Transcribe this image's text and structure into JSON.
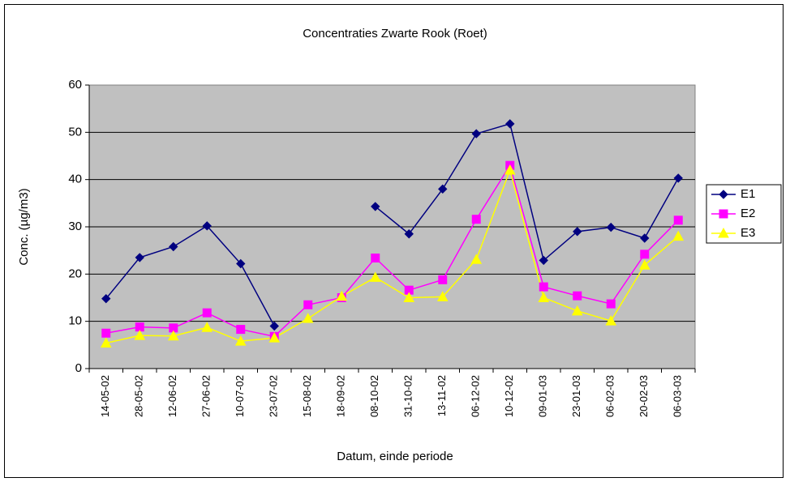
{
  "chart_data": {
    "type": "line",
    "title": "Concentraties Zwarte Rook (Roet)",
    "x_label": "Datum, einde periode",
    "y_label": "Conc. (µg/m3)",
    "categories": [
      "14-05-02",
      "28-05-02",
      "12-06-02",
      "27-06-02",
      "10-07-02",
      "23-07-02",
      "15-08-02",
      "18-09-02",
      "08-10-02",
      "31-10-02",
      "13-11-02",
      "06-12-02",
      "10-12-02",
      "09-01-03",
      "23-01-03",
      "06-02-03",
      "20-02-03",
      "06-03-03"
    ],
    "series": [
      {
        "name": "E1",
        "color": "#000080",
        "marker": "diamond",
        "values": [
          14.8,
          23.5,
          25.8,
          30.2,
          22.2,
          9.0,
          null,
          null,
          34.3,
          28.5,
          38.0,
          49.7,
          51.8,
          22.9,
          29.0,
          29.9,
          27.6,
          40.3
        ]
      },
      {
        "name": "E2",
        "color": "#ff00ff",
        "marker": "square",
        "values": [
          7.5,
          8.8,
          8.6,
          11.8,
          8.3,
          6.8,
          13.5,
          15.0,
          23.4,
          16.6,
          18.8,
          31.6,
          43.0,
          17.3,
          15.4,
          13.7,
          24.2,
          31.4
        ]
      },
      {
        "name": "E3",
        "color": "#ffff00",
        "marker": "triangle",
        "values": [
          5.4,
          7.0,
          6.9,
          8.7,
          5.8,
          6.5,
          10.6,
          15.3,
          19.3,
          15.0,
          15.2,
          23.1,
          42.0,
          15.0,
          12.2,
          10.1,
          21.9,
          28.0
        ]
      }
    ],
    "ylim": [
      0,
      60
    ],
    "yticks": [
      0,
      10,
      20,
      30,
      40,
      50,
      60
    ],
    "grid": true,
    "legend": "right"
  }
}
